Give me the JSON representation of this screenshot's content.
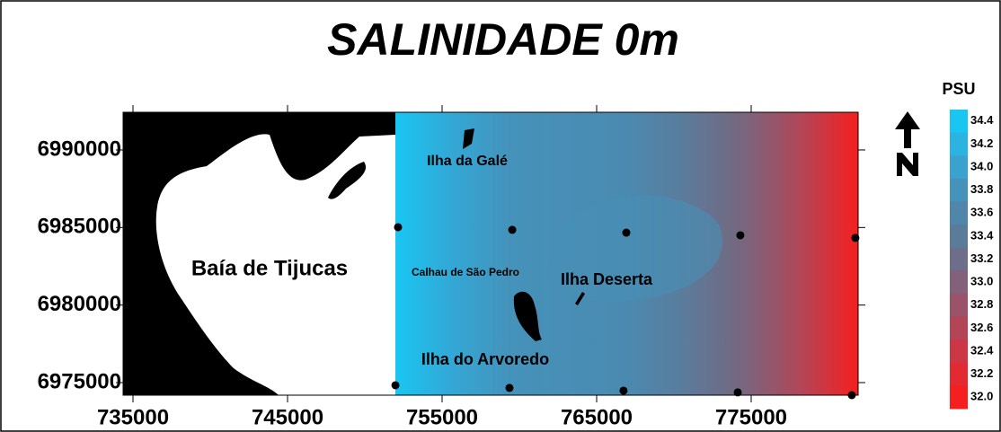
{
  "chart_data": {
    "type": "contour-map",
    "title": "SALINIDADE 0m",
    "xlim": [
      734360,
      781920
    ],
    "ylim": [
      6974190,
      6992430
    ],
    "xticks": [
      735000,
      745000,
      755000,
      765000,
      775000
    ],
    "yticks": [
      6975000,
      6980000,
      6985000,
      6990000
    ],
    "stations": {
      "x": [
        752150,
        759540,
        766920,
        774300,
        781740,
        751980,
        759360,
        766740,
        774130,
        781510
      ],
      "y": [
        6985020,
        6984850,
        6984670,
        6984500,
        6984330,
        6974830,
        6974660,
        6974480,
        6974370,
        6974190
      ]
    },
    "places": [
      "Baía de Tijucas",
      "Ilha da Galé",
      "Calhau de São Pedro",
      "Ilha Deserta",
      "Ilha do Arvoredo"
    ],
    "colorbar": {
      "title": "PSU",
      "levels": [
        34.4,
        34.2,
        {
          "value": 34.0,
          "label": "34.0"
        },
        33.8,
        33.6,
        33.4,
        33.2,
        {
          "value": 33.0,
          "label": "33.0"
        },
        32.8,
        32.6,
        32.4,
        32.2,
        {
          "value": 32.0,
          "label": "32.0"
        }
      ],
      "colors": [
        "#19c6f2",
        "#2bb3e2",
        "#3aa2cf",
        "#4593bb",
        "#4f86aa",
        "#5b7b9a",
        "#6c6e8b",
        "#83617b",
        "#9b536a",
        "#b44557",
        "#cc3745",
        "#e22a33",
        "#f51f1f"
      ]
    }
  }
}
